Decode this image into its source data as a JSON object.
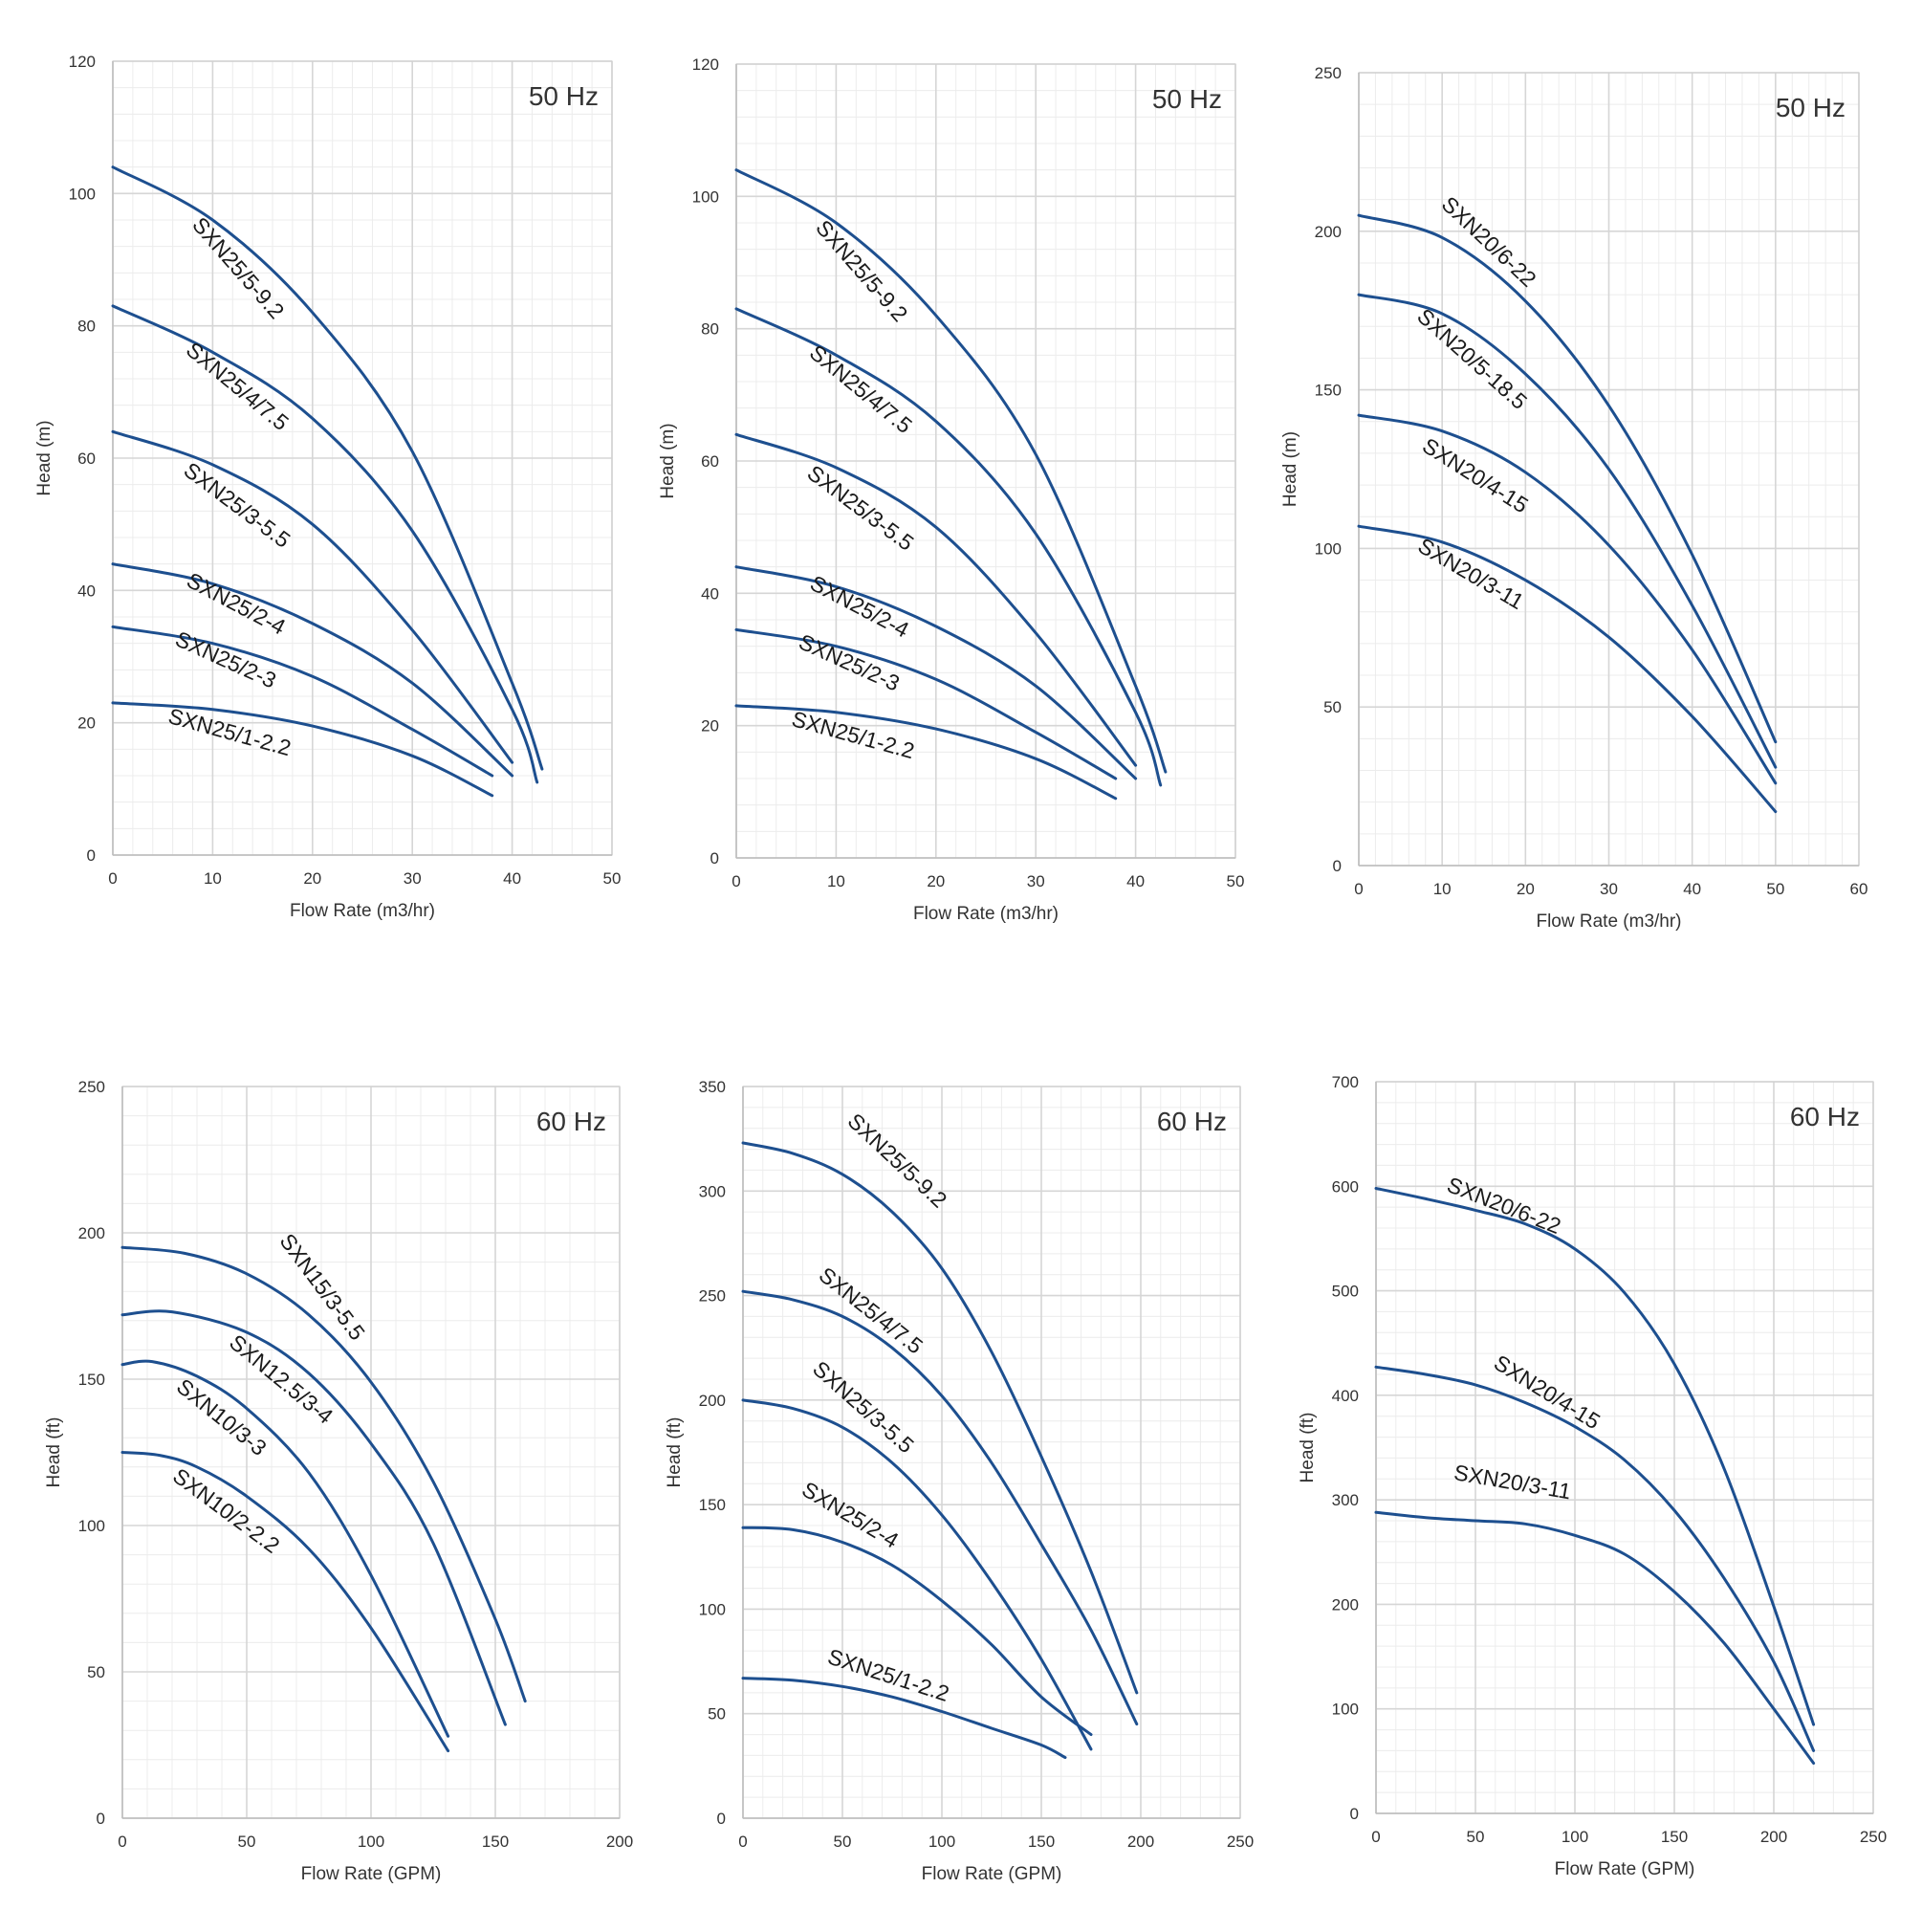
{
  "colors": {
    "curve": "#1d4f8f",
    "major_grid": "#d6d6d6",
    "minor_grid": "#ececec",
    "label_bg": "#ffffff"
  },
  "chart_data": [
    {
      "type": "line",
      "frequency": "50 Hz",
      "xlabel": "Flow Rate (m3/hr)",
      "ylabel": "Head (m)",
      "xlim": [
        0,
        50
      ],
      "ylim": [
        0,
        120
      ],
      "xticks": [
        0,
        10,
        20,
        30,
        40,
        50
      ],
      "yticks": [
        0,
        20,
        40,
        60,
        80,
        100,
        120
      ],
      "grid": true,
      "series": [
        {
          "name": "SXN25/5-9.2",
          "x": [
            0,
            10,
            20,
            30,
            40,
            43
          ],
          "y": [
            104,
            96,
            82,
            61,
            26,
            13
          ],
          "label_at": [
            12,
            88
          ]
        },
        {
          "name": "SXN25/4/7.5",
          "x": [
            0,
            10,
            20,
            30,
            40,
            42.5
          ],
          "y": [
            83,
            76,
            66,
            49,
            22,
            11
          ],
          "label_at": [
            12,
            70
          ]
        },
        {
          "name": "SXN25/3-5.5",
          "x": [
            0,
            10,
            20,
            30,
            40
          ],
          "y": [
            64,
            59,
            50,
            34,
            14
          ],
          "label_at": [
            12,
            52
          ]
        },
        {
          "name": "SXN25/2-4",
          "x": [
            0,
            10,
            20,
            30,
            40
          ],
          "y": [
            44,
            41,
            35,
            26,
            12
          ],
          "label_at": [
            12,
            37
          ]
        },
        {
          "name": "SXN25/2-3",
          "x": [
            0,
            10,
            20,
            30,
            38
          ],
          "y": [
            34.5,
            32,
            27,
            19,
            12
          ],
          "label_at": [
            11,
            28.5
          ]
        },
        {
          "name": "SXN25/1-2.2",
          "x": [
            0,
            10,
            20,
            30,
            38
          ],
          "y": [
            23,
            22,
            19.5,
            15,
            9
          ],
          "label_at": [
            11.5,
            17.5
          ]
        }
      ]
    },
    {
      "type": "line",
      "frequency": "50 Hz",
      "xlabel": "Flow Rate (m3/hr)",
      "ylabel": "Head (m)",
      "xlim": [
        0,
        50
      ],
      "ylim": [
        0,
        120
      ],
      "xticks": [
        0,
        10,
        20,
        30,
        40,
        50
      ],
      "yticks": [
        0,
        20,
        40,
        60,
        80,
        100,
        120
      ],
      "grid": true,
      "series": [
        {
          "name": "SXN25/5-9.2",
          "x": [
            0,
            10,
            20,
            30,
            40,
            43
          ],
          "y": [
            104,
            96,
            82,
            61,
            26,
            13
          ],
          "label_at": [
            12,
            88
          ]
        },
        {
          "name": "SXN25/4/7.5",
          "x": [
            0,
            10,
            20,
            30,
            40,
            42.5
          ],
          "y": [
            83,
            76,
            66,
            49,
            22,
            11
          ],
          "label_at": [
            12,
            70
          ]
        },
        {
          "name": "SXN25/3-5.5",
          "x": [
            0,
            10,
            20,
            30,
            40
          ],
          "y": [
            64,
            59,
            50,
            34,
            14
          ],
          "label_at": [
            12,
            52
          ]
        },
        {
          "name": "SXN25/2-4",
          "x": [
            0,
            10,
            20,
            30,
            40
          ],
          "y": [
            44,
            41,
            35,
            26,
            12
          ],
          "label_at": [
            12,
            37
          ]
        },
        {
          "name": "SXN25/2-3",
          "x": [
            0,
            10,
            20,
            30,
            38
          ],
          "y": [
            34.5,
            32,
            27,
            19,
            12
          ],
          "label_at": [
            11,
            28.5
          ]
        },
        {
          "name": "SXN25/1-2.2",
          "x": [
            0,
            10,
            20,
            30,
            38
          ],
          "y": [
            23,
            22,
            19.5,
            15,
            9
          ],
          "label_at": [
            11.5,
            17.5
          ]
        }
      ]
    },
    {
      "type": "line",
      "frequency": "50 Hz",
      "xlabel": "Flow Rate (m3/hr)",
      "ylabel": "Head (m)",
      "xlim": [
        0,
        60
      ],
      "ylim": [
        0,
        250
      ],
      "xticks": [
        0,
        10,
        20,
        30,
        40,
        50,
        60
      ],
      "yticks": [
        0,
        50,
        100,
        150,
        200,
        250
      ],
      "grid": true,
      "series": [
        {
          "name": "SXN20/6-22",
          "x": [
            0,
            10,
            20,
            30,
            40,
            50
          ],
          "y": [
            205,
            198,
            178,
            145,
            98,
            39
          ],
          "label_at": [
            15,
            195
          ]
        },
        {
          "name": "SXN20/5-18.5",
          "x": [
            0,
            10,
            20,
            30,
            40,
            50
          ],
          "y": [
            180,
            174,
            155,
            125,
            82,
            31
          ],
          "label_at": [
            13,
            158
          ]
        },
        {
          "name": "SXN20/4-15",
          "x": [
            0,
            10,
            20,
            30,
            40,
            50
          ],
          "y": [
            142,
            137,
            124,
            101,
            68,
            26
          ],
          "label_at": [
            13.5,
            121
          ]
        },
        {
          "name": "SXN20/3-11",
          "x": [
            0,
            10,
            20,
            30,
            40,
            50
          ],
          "y": [
            107,
            102,
            90,
            72,
            47,
            17
          ],
          "label_at": [
            13,
            90
          ]
        }
      ]
    },
    {
      "type": "line",
      "frequency": "60 Hz",
      "xlabel": "Flow Rate (GPM)",
      "ylabel": "Head (ft)",
      "xlim": [
        0,
        200
      ],
      "ylim": [
        0,
        250
      ],
      "xticks": [
        0,
        50,
        100,
        150,
        200
      ],
      "xtick_labels": [
        "0",
        "50",
        "100",
        "150",
        "200"
      ],
      "yticks": [
        0,
        50,
        100,
        150,
        200,
        250
      ],
      "grid": true,
      "series": [
        {
          "name": "SXN15/3-5.5",
          "x": [
            0,
            25,
            50,
            75,
            100,
            125,
            150,
            162
          ],
          "y": [
            195,
            193,
            186,
            172,
            149,
            115,
            68,
            40
          ],
          "label_at": [
            78,
            180
          ]
        },
        {
          "name": "SXN12.5/3-4",
          "x": [
            0,
            20,
            50,
            75,
            100,
            125,
            154
          ],
          "y": [
            172,
            173,
            166,
            152,
            128,
            94,
            32
          ],
          "label_at": [
            62,
            148
          ]
        },
        {
          "name": "SXN10/3-3",
          "x": [
            0,
            12,
            30,
            50,
            75,
            100,
            131
          ],
          "y": [
            155,
            156,
            151,
            140,
            118,
            83,
            28
          ],
          "label_at": [
            38,
            135
          ]
        },
        {
          "name": "SXN10/2-2.2",
          "x": [
            0,
            15,
            30,
            50,
            75,
            100,
            131
          ],
          "y": [
            125,
            124,
            120,
            110,
            92,
            65,
            23
          ],
          "label_at": [
            40,
            103
          ]
        }
      ]
    },
    {
      "type": "line",
      "frequency": "60 Hz",
      "xlabel": "Flow Rate (GPM)",
      "ylabel": "Head (ft)",
      "xlim": [
        0,
        250
      ],
      "ylim": [
        0,
        350
      ],
      "xticks": [
        0,
        50,
        100,
        150,
        200,
        250
      ],
      "yticks": [
        0,
        50,
        100,
        150,
        200,
        250,
        300,
        350
      ],
      "grid": true,
      "series": [
        {
          "name": "SXN25/5-9.2",
          "x": [
            0,
            25,
            50,
            75,
            100,
            125,
            150,
            175,
            198
          ],
          "y": [
            323,
            318,
            308,
            290,
            263,
            223,
            173,
            118,
            60
          ],
          "label_at": [
            75,
            312
          ]
        },
        {
          "name": "SXN25/4/7.5",
          "x": [
            0,
            25,
            50,
            75,
            100,
            125,
            150,
            175,
            198
          ],
          "y": [
            252,
            248,
            240,
            225,
            202,
            170,
            131,
            90,
            45
          ],
          "label_at": [
            62,
            240
          ]
        },
        {
          "name": "SXN25/3-5.5",
          "x": [
            0,
            25,
            50,
            75,
            100,
            125,
            150,
            175
          ],
          "y": [
            200,
            196,
            187,
            170,
            145,
            113,
            76,
            33
          ],
          "label_at": [
            58,
            194
          ]
        },
        {
          "name": "SXN25/2-4",
          "x": [
            0,
            25,
            50,
            75,
            100,
            125,
            150,
            175
          ],
          "y": [
            139,
            138,
            132,
            121,
            104,
            83,
            58,
            40
          ],
          "label_at": [
            52,
            142
          ]
        },
        {
          "name": "SXN25/1-2.2",
          "x": [
            0,
            25,
            50,
            75,
            100,
            125,
            150,
            162
          ],
          "y": [
            67,
            66,
            63,
            58,
            51,
            43,
            35,
            29
          ],
          "label_at": [
            72,
            65
          ]
        }
      ]
    },
    {
      "type": "line",
      "frequency": "60 Hz",
      "xlabel": "Flow Rate (GPM)",
      "ylabel": "Head (ft)",
      "xlim": [
        0,
        250
      ],
      "ylim": [
        0,
        700
      ],
      "xticks": [
        0,
        50,
        100,
        150,
        200,
        250
      ],
      "yticks": [
        0,
        100,
        200,
        300,
        400,
        500,
        600,
        700
      ],
      "grid": true,
      "series": [
        {
          "name": "SXN20/6-22",
          "x": [
            0,
            25,
            50,
            75,
            100,
            125,
            150,
            175,
            200,
            220
          ],
          "y": [
            598,
            588,
            577,
            564,
            540,
            498,
            430,
            330,
            198,
            85
          ],
          "label_at": [
            63,
            575
          ]
        },
        {
          "name": "SXN20/4-15",
          "x": [
            0,
            25,
            50,
            75,
            100,
            125,
            150,
            175,
            200,
            220
          ],
          "y": [
            427,
            420,
            410,
            393,
            370,
            338,
            290,
            225,
            145,
            60
          ],
          "label_at": [
            84,
            397
          ]
        },
        {
          "name": "SXN20/3-11",
          "x": [
            0,
            25,
            50,
            75,
            100,
            125,
            150,
            175,
            200,
            220
          ],
          "y": [
            288,
            283,
            280,
            277,
            266,
            248,
            212,
            163,
            100,
            48
          ],
          "label_at": [
            68,
            310
          ]
        }
      ]
    }
  ]
}
